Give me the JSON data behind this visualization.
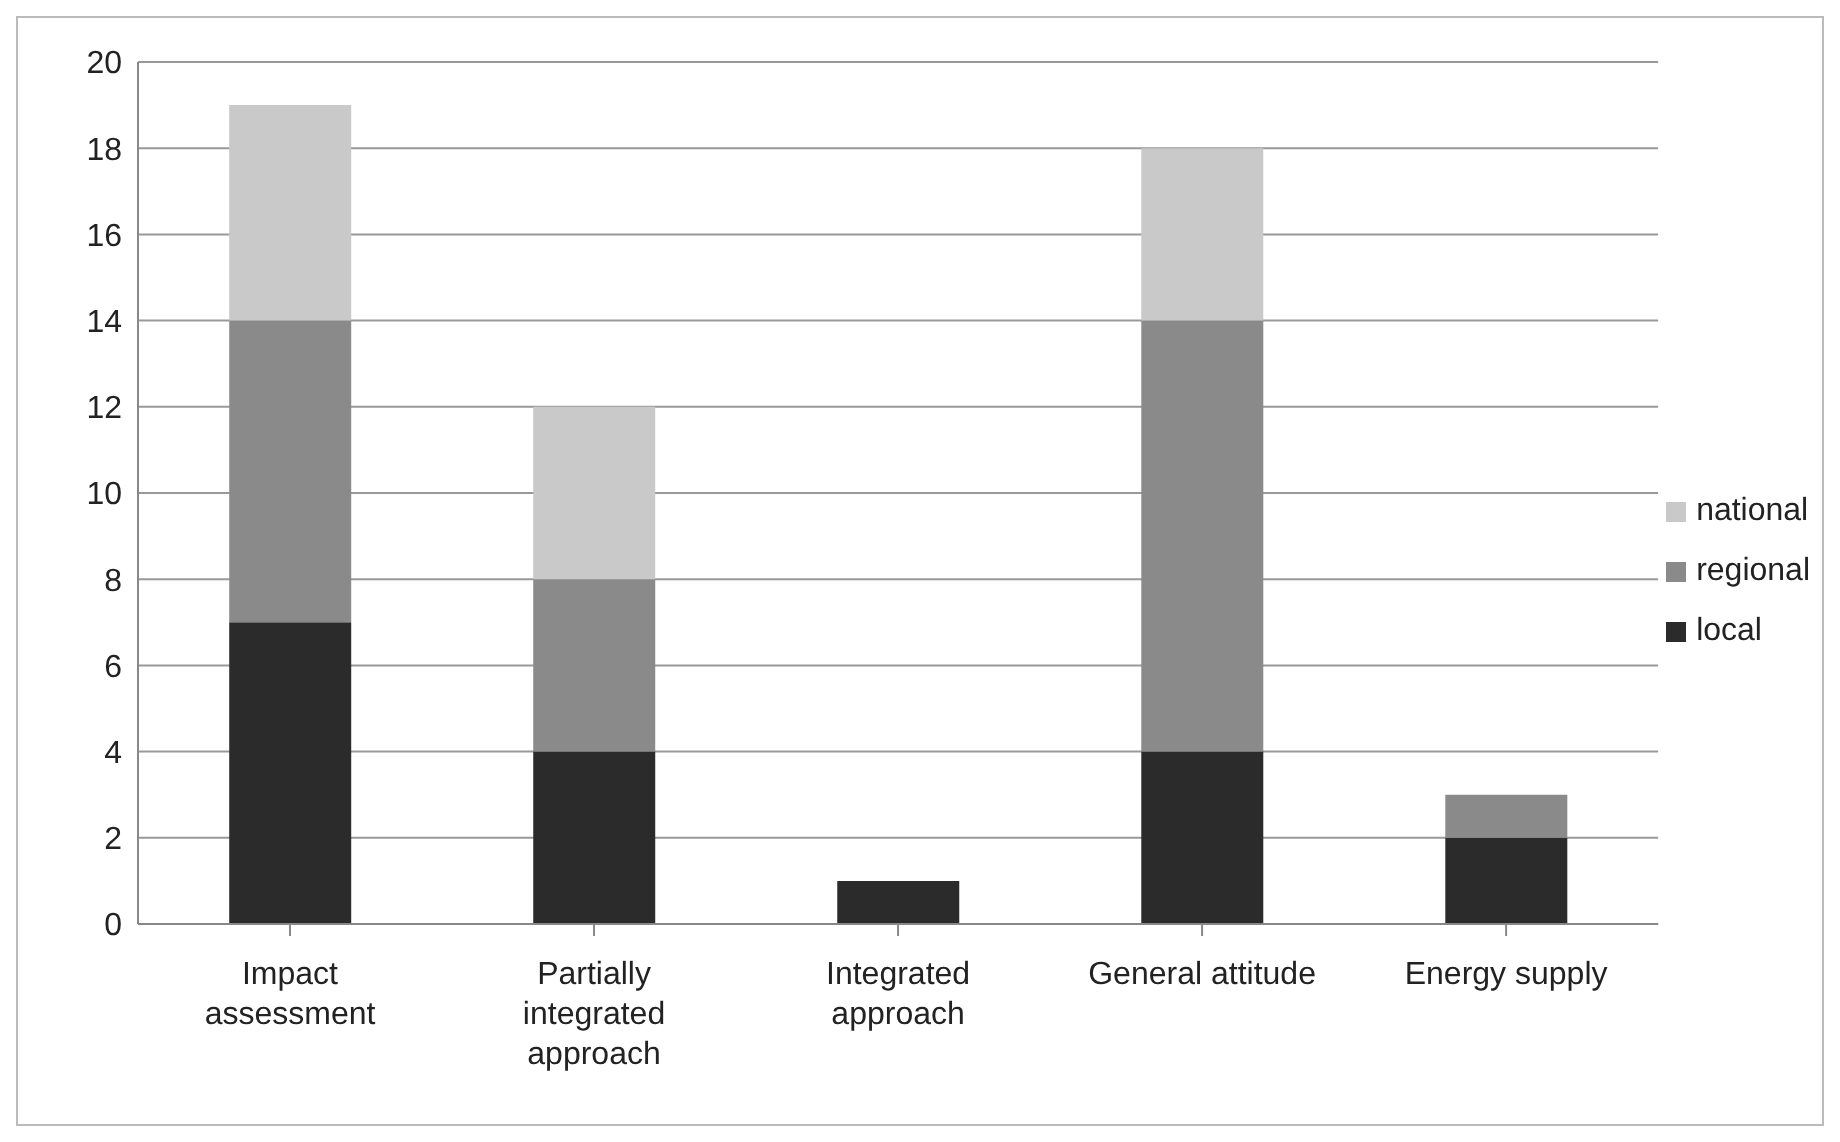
{
  "chart_data": {
    "type": "bar",
    "stacked": true,
    "categories": [
      "Impact assessment",
      "Partially integrated approach",
      "Integrated approach",
      "General attitude",
      "Energy supply"
    ],
    "series": [
      {
        "name": "local",
        "color": "#2b2b2b",
        "values": [
          7,
          4,
          1,
          4,
          2
        ]
      },
      {
        "name": "regional",
        "color": "#8a8a8a",
        "values": [
          7,
          4,
          0,
          10,
          1
        ]
      },
      {
        "name": "national",
        "color": "#c9c9c9",
        "values": [
          5,
          4,
          0,
          4,
          0
        ]
      }
    ],
    "ylim": [
      0,
      20
    ],
    "yticks": [
      0,
      2,
      4,
      6,
      8,
      10,
      12,
      14,
      16,
      18,
      20
    ],
    "grid": "y",
    "legend": "right"
  }
}
